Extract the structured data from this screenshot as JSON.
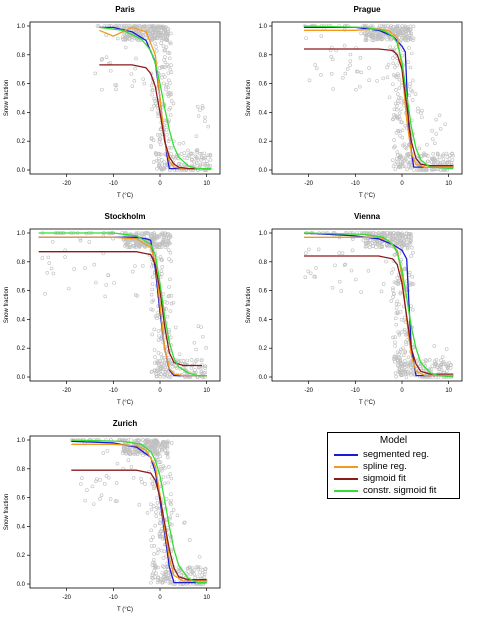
{
  "legend": {
    "title": "Model",
    "items": [
      {
        "label": "segmented reg.",
        "color": "#1a1adb"
      },
      {
        "label": "spline reg.",
        "color": "#f39a1e"
      },
      {
        "label": "sigmoid fit",
        "color": "#8b1a1a"
      },
      {
        "label": "constr. sigmoid fit",
        "color": "#33dd33"
      }
    ]
  },
  "chart_data": [
    {
      "type": "scatter",
      "title": "Paris",
      "xlabel": "T (°C)",
      "ylabel": "Snow fraction",
      "xlim": [
        -27,
        12
      ],
      "ylim": [
        0,
        1
      ],
      "xticks": [
        -20,
        -10,
        0,
        10
      ],
      "yticks": [
        0.0,
        0.2,
        0.4,
        0.6,
        0.8,
        1.0
      ],
      "point_color": "#c0c0c0",
      "observations_x_range": [
        -14,
        11
      ],
      "series": [
        {
          "model": "segmented",
          "x": [
            -13,
            -10,
            -6,
            -3,
            -1,
            0,
            0.5,
            1,
            1.5,
            2,
            4,
            11
          ],
          "y": [
            0.99,
            0.99,
            0.96,
            0.9,
            0.75,
            0.5,
            0.35,
            0.22,
            0.1,
            0.01,
            0.01,
            0.01
          ]
        },
        {
          "model": "spline",
          "x": [
            -13,
            -10,
            -6,
            -3,
            -1,
            0,
            1,
            2,
            3,
            5,
            11
          ],
          "y": [
            0.97,
            0.93,
            0.99,
            0.96,
            0.8,
            0.5,
            0.2,
            0.06,
            0.02,
            0.01,
            0.01
          ]
        },
        {
          "model": "sigmoid",
          "x": [
            -13,
            -6,
            -3,
            -2,
            -1,
            0,
            1,
            2,
            3,
            4,
            6,
            11
          ],
          "y": [
            0.73,
            0.73,
            0.71,
            0.67,
            0.58,
            0.4,
            0.2,
            0.09,
            0.04,
            0.02,
            0.01,
            0.01
          ]
        },
        {
          "model": "constr_sigmoid",
          "x": [
            -13,
            -8,
            -4,
            -2,
            -1,
            0,
            1,
            2,
            3,
            4,
            6,
            8,
            11
          ],
          "y": [
            0.99,
            0.97,
            0.91,
            0.83,
            0.74,
            0.6,
            0.43,
            0.28,
            0.16,
            0.09,
            0.03,
            0.01,
            0.01
          ]
        }
      ]
    },
    {
      "type": "scatter",
      "title": "Prague",
      "xlabel": "T (°C)",
      "ylabel": "Snow fraction",
      "xlim": [
        -27,
        12
      ],
      "ylim": [
        0,
        1
      ],
      "xticks": [
        -20,
        -10,
        0,
        10
      ],
      "yticks": [
        0.0,
        0.2,
        0.4,
        0.6,
        0.8,
        1.0
      ],
      "point_color": "#c0c0c0",
      "observations_x_range": [
        -21,
        11
      ],
      "series": [
        {
          "model": "segmented",
          "x": [
            -21,
            -10,
            -5,
            -2,
            0,
            0.7,
            1,
            1.5,
            2.5,
            4,
            11
          ],
          "y": [
            0.99,
            0.99,
            0.97,
            0.93,
            0.86,
            0.82,
            0.6,
            0.25,
            0.02,
            0.02,
            0.02
          ]
        },
        {
          "model": "spline",
          "x": [
            -21,
            -10,
            -5,
            -3,
            -1,
            0,
            1,
            2,
            3,
            5,
            11
          ],
          "y": [
            0.97,
            0.97,
            0.98,
            0.97,
            0.92,
            0.7,
            0.35,
            0.12,
            0.04,
            0.02,
            0.02
          ]
        },
        {
          "model": "sigmoid",
          "x": [
            -21,
            -5,
            -2,
            -1,
            0,
            1,
            2,
            3,
            4,
            6,
            11
          ],
          "y": [
            0.84,
            0.84,
            0.83,
            0.8,
            0.7,
            0.45,
            0.2,
            0.08,
            0.04,
            0.03,
            0.03
          ]
        },
        {
          "model": "constr_sigmoid",
          "x": [
            -21,
            -8,
            -4,
            -2,
            -1,
            0,
            1,
            2,
            3,
            4,
            6,
            11
          ],
          "y": [
            1.0,
            0.99,
            0.97,
            0.93,
            0.88,
            0.75,
            0.52,
            0.3,
            0.15,
            0.07,
            0.02,
            0.01
          ]
        }
      ]
    },
    {
      "type": "scatter",
      "title": "Stockholm",
      "xlabel": "T (°C)",
      "ylabel": "Snow fraction",
      "xlim": [
        -27,
        12
      ],
      "ylim": [
        0,
        1
      ],
      "xticks": [
        -20,
        -10,
        0,
        10
      ],
      "yticks": [
        0.0,
        0.2,
        0.4,
        0.6,
        0.8,
        1.0
      ],
      "point_color": "#c0c0c0",
      "observations_x_range": [
        -26,
        10
      ],
      "series": [
        {
          "model": "segmented",
          "x": [
            -26,
            -5,
            -3,
            -2,
            -1,
            0,
            1,
            2,
            3,
            5,
            10
          ],
          "y": [
            0.97,
            0.97,
            0.96,
            0.95,
            0.75,
            0.45,
            0.2,
            0.05,
            0.01,
            0.01,
            0.01
          ]
        },
        {
          "model": "spline",
          "x": [
            -26,
            -10,
            -5,
            -2,
            -1,
            0,
            1,
            2,
            3,
            5,
            10
          ],
          "y": [
            0.97,
            0.97,
            0.96,
            0.9,
            0.8,
            0.5,
            0.2,
            0.06,
            0.02,
            0.01,
            0.01
          ]
        },
        {
          "model": "sigmoid",
          "x": [
            -26,
            -5,
            -2,
            -1,
            0,
            1,
            2,
            3,
            5,
            7,
            9
          ],
          "y": [
            0.87,
            0.87,
            0.85,
            0.78,
            0.6,
            0.35,
            0.17,
            0.1,
            0.08,
            0.08,
            0.08
          ]
        },
        {
          "model": "constr_sigmoid",
          "x": [
            -26,
            -10,
            -5,
            -2,
            -1,
            0,
            1,
            2,
            3,
            4,
            6,
            8,
            10
          ],
          "y": [
            1.0,
            1.0,
            0.98,
            0.92,
            0.85,
            0.65,
            0.42,
            0.24,
            0.13,
            0.07,
            0.03,
            0.01,
            0.01
          ]
        }
      ]
    },
    {
      "type": "scatter",
      "title": "Vienna",
      "xlabel": "T (°C)",
      "ylabel": "Snow fraction",
      "xlim": [
        -27,
        12
      ],
      "ylim": [
        0,
        1
      ],
      "xticks": [
        -20,
        -10,
        0,
        10
      ],
      "yticks": [
        0.0,
        0.2,
        0.4,
        0.6,
        0.8,
        1.0
      ],
      "point_color": "#c0c0c0",
      "observations_x_range": [
        -21,
        11
      ],
      "series": [
        {
          "model": "segmented",
          "x": [
            -21,
            -10,
            -5,
            -2,
            0,
            1,
            1.5,
            2,
            3,
            4,
            11
          ],
          "y": [
            1.0,
            0.98,
            0.96,
            0.92,
            0.88,
            0.82,
            0.5,
            0.2,
            0.01,
            0.01,
            0.01
          ]
        },
        {
          "model": "spline",
          "x": [
            -21,
            -10,
            -5,
            -3,
            -1,
            0,
            1,
            2,
            3,
            5,
            11
          ],
          "y": [
            0.97,
            0.97,
            0.97,
            0.95,
            0.88,
            0.7,
            0.4,
            0.15,
            0.04,
            0.01,
            0.01
          ]
        },
        {
          "model": "sigmoid",
          "x": [
            -21,
            -5,
            -2,
            -1,
            0,
            1,
            2,
            3,
            4,
            6,
            11
          ],
          "y": [
            0.84,
            0.84,
            0.82,
            0.78,
            0.65,
            0.42,
            0.2,
            0.09,
            0.04,
            0.02,
            0.02
          ]
        },
        {
          "model": "constr_sigmoid",
          "x": [
            -21,
            -8,
            -4,
            -2,
            -1,
            0,
            1,
            2,
            3,
            4,
            6,
            8,
            11
          ],
          "y": [
            1.0,
            0.99,
            0.97,
            0.92,
            0.86,
            0.74,
            0.55,
            0.35,
            0.2,
            0.1,
            0.03,
            0.01,
            0.0
          ]
        }
      ]
    },
    {
      "type": "scatter",
      "title": "Zurich",
      "xlabel": "T (°C)",
      "ylabel": "Snow fraction",
      "xlim": [
        -27,
        12
      ],
      "ylim": [
        0,
        1
      ],
      "xticks": [
        -20,
        -10,
        0,
        10
      ],
      "yticks": [
        0.0,
        0.2,
        0.4,
        0.6,
        0.8,
        1.0
      ],
      "point_color": "#c0c0c0",
      "observations_x_range": [
        -19,
        10
      ],
      "series": [
        {
          "model": "segmented",
          "x": [
            -19,
            -10,
            -5,
            -2,
            -1,
            0,
            1,
            2,
            3,
            4,
            10
          ],
          "y": [
            0.99,
            0.98,
            0.95,
            0.88,
            0.78,
            0.58,
            0.35,
            0.12,
            0.01,
            0.01,
            0.01
          ]
        },
        {
          "model": "spline",
          "x": [
            -19,
            -10,
            -5,
            -3,
            -1,
            0,
            1,
            2,
            3,
            5,
            10
          ],
          "y": [
            0.97,
            0.97,
            0.96,
            0.93,
            0.82,
            0.62,
            0.38,
            0.18,
            0.06,
            0.02,
            0.02
          ]
        },
        {
          "model": "sigmoid",
          "x": [
            -19,
            -5,
            -2,
            -1,
            0,
            1,
            2,
            3,
            4,
            6,
            10
          ],
          "y": [
            0.79,
            0.79,
            0.77,
            0.72,
            0.6,
            0.42,
            0.24,
            0.11,
            0.05,
            0.03,
            0.03
          ]
        },
        {
          "model": "constr_sigmoid",
          "x": [
            -19,
            -8,
            -4,
            -2,
            -1,
            0,
            1,
            2,
            3,
            4,
            6,
            8,
            10
          ],
          "y": [
            1.0,
            0.99,
            0.97,
            0.92,
            0.86,
            0.75,
            0.58,
            0.4,
            0.24,
            0.13,
            0.04,
            0.01,
            0.01
          ]
        }
      ]
    }
  ]
}
